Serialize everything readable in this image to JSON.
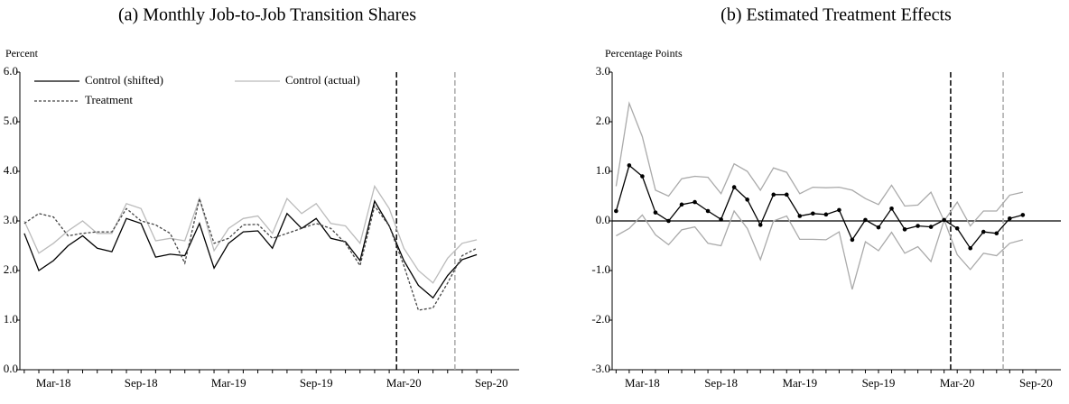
{
  "chart_data": [
    {
      "type": "line",
      "title": "(a) Monthly Job-to-Job Transition Shares",
      "ylabel": "Percent",
      "categories": [
        null,
        null,
        "Mar-18",
        null,
        null,
        null,
        null,
        null,
        "Sep-18",
        null,
        null,
        null,
        null,
        null,
        "Mar-19",
        null,
        null,
        null,
        null,
        null,
        "Sep-19",
        null,
        null,
        null,
        null,
        null,
        "Mar-20",
        null,
        null,
        null,
        null,
        null,
        "Sep-20"
      ],
      "series": [
        {
          "name": "Control (shifted)",
          "color": "#000000",
          "dash": false,
          "values": [
            2.75,
            2.0,
            2.2,
            2.5,
            2.7,
            2.45,
            2.38,
            3.05,
            2.95,
            2.27,
            2.33,
            2.3,
            2.95,
            2.05,
            2.55,
            2.78,
            2.8,
            2.45,
            3.15,
            2.85,
            3.05,
            2.65,
            2.58,
            2.2,
            3.4,
            2.9,
            2.2,
            1.7,
            1.45,
            1.9,
            2.22,
            2.32,
            null
          ]
        },
        {
          "name": "Control (actual)",
          "color": "#bbbbbb",
          "dash": false,
          "values": [
            3.0,
            2.35,
            2.55,
            2.8,
            3.0,
            2.75,
            2.75,
            3.35,
            3.25,
            2.6,
            2.65,
            2.6,
            3.45,
            2.4,
            2.85,
            3.05,
            3.1,
            2.75,
            3.45,
            3.15,
            3.35,
            2.95,
            2.9,
            2.55,
            3.7,
            3.25,
            2.45,
            2.0,
            1.75,
            2.25,
            2.55,
            2.62,
            null
          ]
        },
        {
          "name": "Treatment",
          "color": "#444444",
          "dash": true,
          "values": [
            2.95,
            3.15,
            3.08,
            2.7,
            2.75,
            2.78,
            2.78,
            3.25,
            3.0,
            2.92,
            2.75,
            2.15,
            3.45,
            2.55,
            2.65,
            2.92,
            2.93,
            2.65,
            2.75,
            2.85,
            2.95,
            2.85,
            2.55,
            2.1,
            3.3,
            2.9,
            2.1,
            1.2,
            1.25,
            1.75,
            2.3,
            2.45,
            null
          ]
        }
      ],
      "ylim": [
        0,
        6
      ],
      "yticks": [
        {
          "value": 0,
          "label": "0.0"
        },
        {
          "value": 1,
          "label": "1.0"
        },
        {
          "value": 2,
          "label": "2.0"
        },
        {
          "value": 3,
          "label": "3.0"
        },
        {
          "value": 4,
          "label": "4.0"
        },
        {
          "value": 5,
          "label": "5.0"
        },
        {
          "value": 6,
          "label": "6.0"
        }
      ],
      "vlines": [
        {
          "at": 25.5,
          "color": "#000000"
        },
        {
          "at": 29.5,
          "color": "#aaaaaa"
        }
      ],
      "legend": "upper left",
      "zero_line": false
    },
    {
      "type": "line",
      "title": "(b) Estimated Treatment Effects",
      "ylabel": "Percentage Points",
      "categories": [
        null,
        null,
        "Mar-18",
        null,
        null,
        null,
        null,
        null,
        "Sep-18",
        null,
        null,
        null,
        null,
        null,
        "Mar-19",
        null,
        null,
        null,
        null,
        null,
        "Sep-19",
        null,
        null,
        null,
        null,
        null,
        "Mar-20",
        null,
        null,
        null,
        null,
        null,
        "Sep-20"
      ],
      "series": [
        {
          "color": "#aaaaaa",
          "markers": false,
          "values": [
            0.7,
            2.37,
            1.7,
            0.62,
            0.5,
            0.85,
            0.9,
            0.88,
            0.55,
            1.15,
            1.0,
            0.62,
            1.07,
            0.98,
            0.55,
            0.68,
            0.67,
            0.68,
            0.62,
            0.45,
            0.33,
            0.72,
            0.3,
            0.32,
            0.58,
            0.0,
            0.38,
            -0.1,
            0.2,
            0.2,
            0.52,
            0.58,
            null
          ]
        },
        {
          "color": "#aaaaaa",
          "markers": false,
          "values": [
            -0.3,
            -0.15,
            0.12,
            -0.28,
            -0.48,
            -0.18,
            -0.12,
            -0.45,
            -0.5,
            0.2,
            -0.15,
            -0.78,
            0.0,
            0.1,
            -0.37,
            -0.37,
            -0.38,
            -0.22,
            -1.38,
            -0.42,
            -0.6,
            -0.23,
            -0.65,
            -0.52,
            -0.82,
            0.02,
            -0.68,
            -0.98,
            -0.65,
            -0.7,
            -0.45,
            -0.38,
            null
          ]
        },
        {
          "color": "#000000",
          "markers": true,
          "values": [
            0.2,
            1.12,
            0.9,
            0.17,
            0.0,
            0.33,
            0.38,
            0.2,
            0.03,
            0.68,
            0.43,
            -0.08,
            0.53,
            0.53,
            0.1,
            0.15,
            0.13,
            0.22,
            -0.38,
            0.02,
            -0.13,
            0.25,
            -0.17,
            -0.1,
            -0.12,
            0.02,
            -0.15,
            -0.55,
            -0.22,
            -0.25,
            0.05,
            0.12,
            null
          ]
        }
      ],
      "ylim": [
        -3,
        3
      ],
      "yticks": [
        {
          "value": -3,
          "label": "-3.0"
        },
        {
          "value": -2,
          "label": "-2.0"
        },
        {
          "value": -1,
          "label": "-1.0"
        },
        {
          "value": 0,
          "label": "0.0"
        },
        {
          "value": 1,
          "label": "1.0"
        },
        {
          "value": 2,
          "label": "2.0"
        },
        {
          "value": 3,
          "label": "3.0"
        }
      ],
      "vlines": [
        {
          "at": 25.5,
          "color": "#000000"
        },
        {
          "at": 29.5,
          "color": "#aaaaaa"
        }
      ],
      "zero_line": true
    }
  ]
}
